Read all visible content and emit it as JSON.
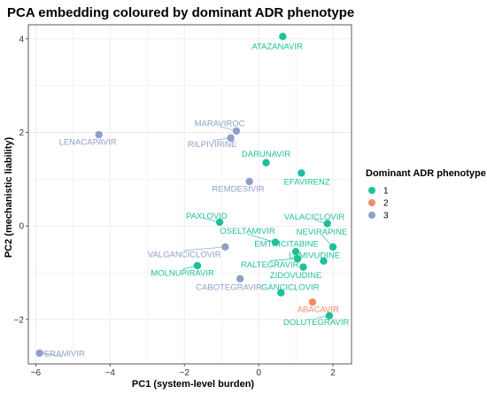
{
  "chart_data": {
    "type": "scatter",
    "title": "PCA embedding coloured by dominant ADR phenotype",
    "xlabel": "PC1 (system-level burden)",
    "ylabel": "PC2 (mechanistic liability)",
    "xlim": [
      -6.2,
      2.5
    ],
    "ylim": [
      -2.95,
      4.3
    ],
    "x_ticks": [
      -6,
      -4,
      -2,
      0,
      2
    ],
    "y_ticks": [
      -2,
      0,
      2,
      4
    ],
    "grid": true,
    "legend": {
      "title": "Dominant ADR phenotype",
      "position": "right",
      "entries": [
        {
          "label": "1",
          "color": "#1fbf9a"
        },
        {
          "label": "2",
          "color": "#f08b66"
        },
        {
          "label": "3",
          "color": "#8fa0c8"
        }
      ]
    },
    "points": [
      {
        "name": "ATAZANAVIR",
        "x": 0.65,
        "y": 4.05,
        "group": "1",
        "lx": 0.5,
        "ly": 3.85
      },
      {
        "name": "LENACAPAVIR",
        "x": -4.3,
        "y": 1.95,
        "group": "3",
        "lx": -4.6,
        "ly": 1.8
      },
      {
        "name": "MARAVIROC",
        "x": -0.6,
        "y": 2.03,
        "group": "3",
        "lx": -1.05,
        "ly": 2.2
      },
      {
        "name": "RILPIVIRINE",
        "x": -0.75,
        "y": 1.88,
        "group": "3",
        "lx": -1.25,
        "ly": 1.75
      },
      {
        "name": "DARUNAVIR",
        "x": 0.2,
        "y": 1.35,
        "group": "1",
        "lx": 0.2,
        "ly": 1.55
      },
      {
        "name": "EFAVIRENZ",
        "x": 1.15,
        "y": 1.13,
        "group": "1",
        "lx": 1.3,
        "ly": 0.95
      },
      {
        "name": "REMDESIVIR",
        "x": -0.25,
        "y": 0.95,
        "group": "3",
        "lx": -0.55,
        "ly": 0.8
      },
      {
        "name": "PAXLOVID",
        "x": -1.05,
        "y": 0.08,
        "group": "1",
        "lx": -1.4,
        "ly": 0.22
      },
      {
        "name": "VALACICLOVIR",
        "x": 1.85,
        "y": 0.05,
        "group": "1",
        "lx": 1.5,
        "ly": 0.2
      },
      {
        "name": "OSELTAMIVIR",
        "x": 0.45,
        "y": -0.35,
        "group": "1",
        "lx": -0.3,
        "ly": -0.1
      },
      {
        "name": "NEVIRAPINE",
        "x": 2.0,
        "y": -0.45,
        "group": "1",
        "lx": 1.7,
        "ly": -0.12
      },
      {
        "name": "EMTRICITABINE",
        "x": 1.0,
        "y": -0.55,
        "group": "1",
        "lx": 0.75,
        "ly": -0.38
      },
      {
        "name": "VALGANCICLOVIR",
        "x": -0.9,
        "y": -0.45,
        "group": "3",
        "lx": -2.0,
        "ly": -0.6
      },
      {
        "name": "LAMIVUDINE",
        "x": 1.75,
        "y": -0.75,
        "group": "1",
        "lx": 1.5,
        "ly": -0.62
      },
      {
        "name": "RALTEGRAVIR",
        "x": 1.05,
        "y": -0.7,
        "group": "1",
        "lx": 0.3,
        "ly": -0.82
      },
      {
        "name": "MOLNUPIRAVIR",
        "x": -1.65,
        "y": -0.85,
        "group": "1",
        "lx": -2.05,
        "ly": -1.0
      },
      {
        "name": "ZIDOVUDINE",
        "x": 1.2,
        "y": -0.88,
        "group": "1",
        "lx": 1.0,
        "ly": -1.05
      },
      {
        "name": "CABOTEGRAVIR",
        "x": -0.5,
        "y": -1.13,
        "group": "3",
        "lx": -0.8,
        "ly": -1.3
      },
      {
        "name": "GANCICLOVIR",
        "x": 0.6,
        "y": -1.43,
        "group": "1",
        "lx": 0.85,
        "ly": -1.3
      },
      {
        "name": "ABACAVIR",
        "x": 1.45,
        "y": -1.63,
        "group": "2",
        "lx": 1.6,
        "ly": -1.78
      },
      {
        "name": "DOLUTEGRAVIR",
        "x": 1.9,
        "y": -1.92,
        "group": "1",
        "lx": 1.55,
        "ly": -2.05
      },
      {
        "name": "PERAMIVIR",
        "x": -5.9,
        "y": -2.72,
        "group": "3",
        "lx": -5.3,
        "ly": -2.72
      }
    ]
  }
}
